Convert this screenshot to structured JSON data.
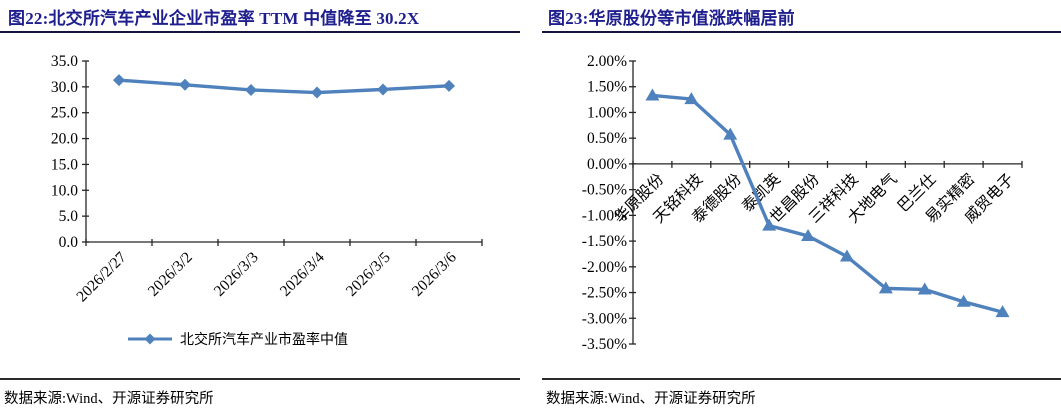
{
  "panels": {
    "accent_color": "#1e1e8e",
    "left": {
      "title": "图22:北交所汽车产业企业市盈率 TTM 中值降至 30.2X",
      "source": "数据来源:Wind、开源证券研究所"
    },
    "right": {
      "title": "图23:华原股份等市值涨跌幅居前",
      "source": "数据来源:Wind、开源证券研究所"
    }
  },
  "chart_data": [
    {
      "type": "line",
      "title": "图22:北交所汽车产业企业市盈率 TTM 中值降至 30.2X",
      "categories": [
        "2026/2/27",
        "2026/3/2",
        "2026/3/3",
        "2026/3/4",
        "2026/3/5",
        "2026/3/6"
      ],
      "series": [
        {
          "name": "北交所汽车产业市盈率中值",
          "values": [
            31.3,
            30.4,
            29.4,
            28.9,
            29.5,
            30.2
          ]
        }
      ],
      "ylim": [
        0,
        35
      ],
      "ytick_step": 5,
      "ytick_labels": [
        "35.0",
        "30.0",
        "25.0",
        "20.0",
        "15.0",
        "10.0",
        "5.0",
        "0.0"
      ],
      "x_axis_at": 0,
      "marker": "diamond",
      "line_color": "#4F81BD",
      "grid": false,
      "legend_position": "bottom"
    },
    {
      "type": "line",
      "title": "图23:华原股份等市值涨跌幅居前",
      "categories": [
        "华原股份",
        "天铭科技",
        "泰德股份",
        "泰凯英",
        "世昌股份",
        "三祥科技",
        "大地电气",
        "巴兰仕",
        "易实精密",
        "威贸电子"
      ],
      "series": [
        {
          "values": [
            1.33,
            1.26,
            0.57,
            -1.2,
            -1.4,
            -1.8,
            -2.42,
            -2.44,
            -2.68,
            -2.88
          ]
        }
      ],
      "ylim": [
        -3.5,
        2.0
      ],
      "ytick_step": 0.5,
      "ytick_labels": [
        "2.00%",
        "1.50%",
        "1.00%",
        "0.50%",
        "0.00%",
        "-0.50%",
        "-1.00%",
        "-1.50%",
        "-2.00%",
        "-2.50%",
        "-3.00%",
        "-3.50%"
      ],
      "x_axis_at": 0,
      "marker": "triangle-up",
      "line_color": "#4F81BD",
      "grid": false,
      "legend_position": "none"
    }
  ]
}
